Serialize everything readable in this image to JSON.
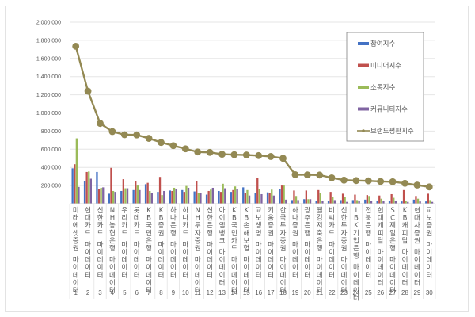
{
  "chart_data": {
    "type": "bar",
    "title": "",
    "xlabel": "",
    "ylabel": "",
    "ylim": [
      0,
      2000000
    ],
    "yticks": [
      0,
      200000,
      400000,
      600000,
      800000,
      1000000,
      1200000,
      1400000,
      1600000,
      1800000,
      2000000
    ],
    "ytick_labels": [
      "-",
      "200,000",
      "400,000",
      "600,000",
      "800,000",
      "1,000,000",
      "1,200,000",
      "1,400,000",
      "1,600,000",
      "1,800,000",
      "2,000,000"
    ],
    "grid": true,
    "legend_position": "right-top",
    "category_numbers": [
      "1",
      "2",
      "3",
      "4",
      "5",
      "6",
      "7",
      "8",
      "9",
      "10",
      "11",
      "12",
      "13",
      "14",
      "15",
      "16",
      "17",
      "18",
      "19",
      "20",
      "21",
      "22",
      "23",
      "24",
      "25",
      "26",
      "27",
      "28",
      "29",
      "30"
    ],
    "categories": [
      "미래에셋증권 마이데이터",
      "현대카드 마이데이터",
      "신한카드 마이데이터",
      "NH농협은행 마이데이터",
      "우리카드 마이데이터",
      "롯데카드 마이데이터",
      "KB국민은행 마이데이터",
      "KB증권 마이데이터",
      "하나은행 마이데이터",
      "하나카드 마이데이터",
      "NH투자증권 마이데이터",
      "신한은행 마이데이터",
      "아이엠뱅크 마이데이터",
      "KB국민카드 마이데이터",
      "KB손해보험 마이데이터",
      "교보생명 마이데이터",
      "키움증권 마이데이터",
      "한국투자증권 마이데이터",
      "하나증권 마이데이터",
      "광주은행 마이데이터",
      "웰컴저축은행 마이데이터",
      "비씨카드 마이데이터",
      "신한투자증권 마이데이터",
      "IBK기업은행 마이데이터",
      "전북은행 마이데이터",
      "현대캐피탈 마이데이터",
      "SC제일은행 마이데이터",
      "KB캐피탈 마이데이터",
      "현대차증권 마이데이터",
      "교보증권 마이데이터"
    ],
    "series": [
      {
        "name": "참여지수",
        "type": "bar",
        "color": "#4472c4",
        "values": [
          390000,
          245000,
          350000,
          110000,
          140000,
          150000,
          215000,
          130000,
          145000,
          150000,
          135000,
          100000,
          140000,
          130000,
          180000,
          115000,
          125000,
          165000,
          40000,
          50000,
          30000,
          30000,
          40000,
          40000,
          45000,
          35000,
          30000,
          25000,
          45000,
          25000
        ]
      },
      {
        "name": "미디어지수",
        "type": "bar",
        "color": "#c0504d",
        "values": [
          435000,
          350000,
          165000,
          395000,
          270000,
          250000,
          230000,
          295000,
          140000,
          130000,
          250000,
          140000,
          130000,
          150000,
          120000,
          285000,
          115000,
          200000,
          145000,
          145000,
          150000,
          130000,
          110000,
          100000,
          95000,
          90000,
          105000,
          150000,
          85000,
          110000
        ]
      },
      {
        "name": "소통지수",
        "type": "bar",
        "color": "#9bbb59",
        "values": [
          720000,
          355000,
          175000,
          140000,
          170000,
          200000,
          140000,
          95000,
          175000,
          195000,
          115000,
          155000,
          220000,
          190000,
          150000,
          160000,
          155000,
          200000,
          85000,
          50000,
          120000,
          75000,
          75000,
          40000,
          85000,
          55000,
          65000,
          30000,
          55000,
          40000
        ]
      },
      {
        "name": "커뮤니티지수",
        "type": "bar",
        "color": "#8064a2",
        "values": [
          185000,
          275000,
          180000,
          130000,
          170000,
          150000,
          115000,
          140000,
          165000,
          175000,
          120000,
          175000,
          170000,
          160000,
          90000,
          105000,
          90000,
          45000,
          40000,
          50000,
          35000,
          40000,
          20000,
          35000,
          35000,
          30000,
          30000,
          20000,
          25000,
          20000
        ]
      },
      {
        "name": "브랜드평판지수",
        "type": "line",
        "color": "#938953",
        "values": [
          1735000,
          1240000,
          885000,
          795000,
          760000,
          758000,
          720000,
          675000,
          640000,
          605000,
          570000,
          565000,
          545000,
          540000,
          537000,
          530000,
          520000,
          500000,
          320000,
          318000,
          316000,
          285000,
          260000,
          255000,
          252000,
          245000,
          242000,
          225000,
          205000,
          185000
        ]
      }
    ]
  }
}
